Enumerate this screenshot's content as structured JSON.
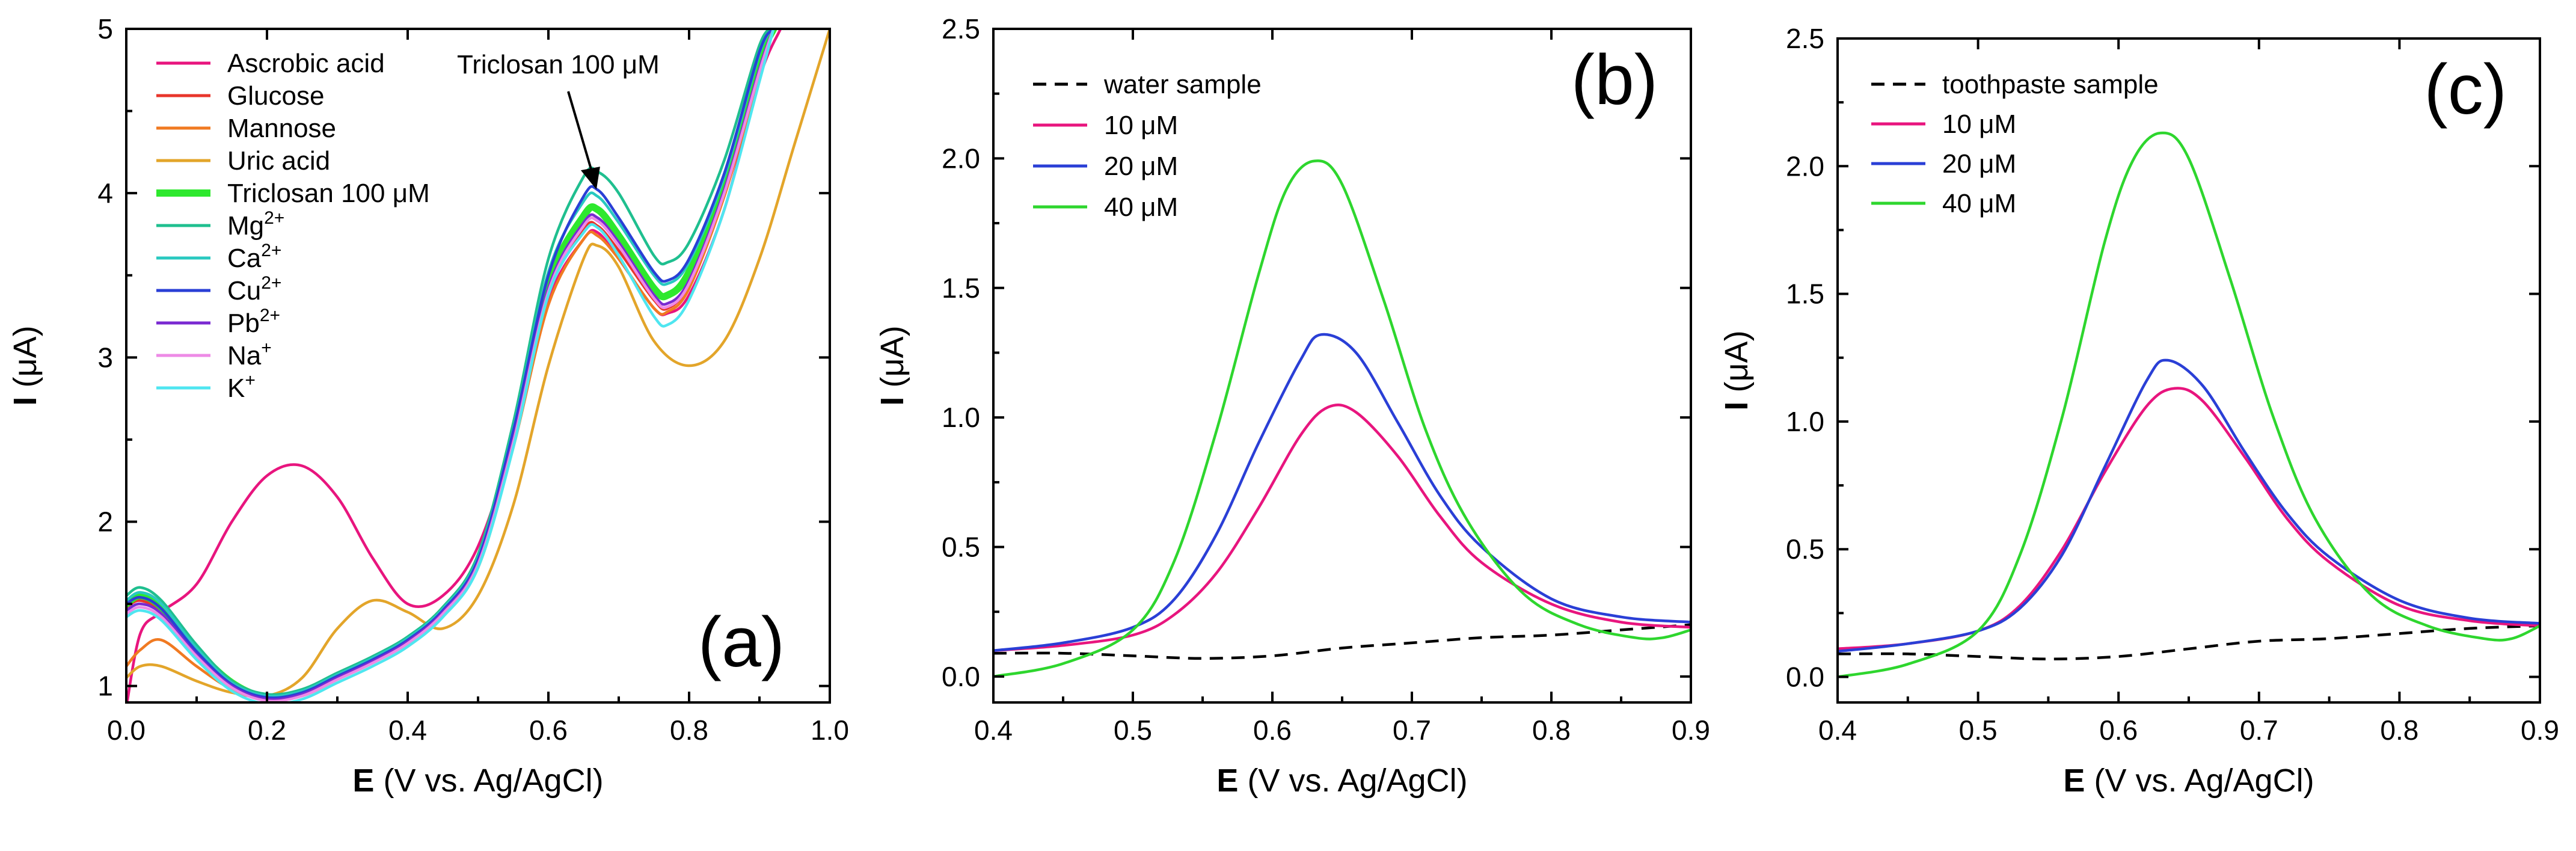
{
  "chart_data": [
    {
      "panel": "a",
      "type": "line",
      "panel_label": "(a)",
      "xlabel_bold": "E",
      "xlabel_rest": " (V vs. Ag/AgCl)",
      "ylabel_bold": "I",
      "ylabel_rest": " (μA)",
      "xlim": [
        0.0,
        1.0
      ],
      "ylim": [
        0.9,
        5.0
      ],
      "xticks": [
        0.0,
        0.2,
        0.4,
        0.6,
        0.8,
        1.0
      ],
      "xtick_labels": [
        "0.0",
        "0.2",
        "0.4",
        "0.6",
        "0.8",
        "1.0"
      ],
      "yticks": [
        1,
        2,
        3,
        4,
        5
      ],
      "ytick_labels": [
        "1",
        "2",
        "3",
        "4",
        "5"
      ],
      "legend_position": "top-left",
      "annotation": "Triclosan 100 μM",
      "annotation_target": [
        0.67,
        4.0
      ],
      "series": [
        {
          "name": "Ascrobic acid",
          "label_main": "Ascrobic acid",
          "label_sup": "",
          "color": "#e8157e",
          "thick": false,
          "x": [
            0.0,
            0.02,
            0.05,
            0.1,
            0.15,
            0.2,
            0.25,
            0.3,
            0.35,
            0.4,
            0.45,
            0.5,
            0.55,
            0.6,
            0.65,
            0.67,
            0.7,
            0.75,
            0.77,
            0.8,
            0.85,
            0.9,
            0.93
          ],
          "y": [
            0.87,
            1.32,
            1.45,
            1.62,
            2.0,
            2.28,
            2.34,
            2.15,
            1.78,
            1.5,
            1.55,
            1.85,
            2.5,
            3.35,
            3.72,
            3.76,
            3.6,
            3.3,
            3.27,
            3.38,
            3.9,
            4.7,
            5.0
          ]
        },
        {
          "name": "Glucose",
          "label_main": "Glucose",
          "label_sup": "",
          "color": "#e8352b",
          "thick": false,
          "x": [
            0.0,
            0.02,
            0.05,
            0.1,
            0.15,
            0.2,
            0.25,
            0.3,
            0.35,
            0.4,
            0.45,
            0.5,
            0.55,
            0.6,
            0.65,
            0.67,
            0.7,
            0.75,
            0.77,
            0.8,
            0.85,
            0.9,
            0.92
          ],
          "y": [
            1.48,
            1.52,
            1.45,
            1.2,
            1.0,
            0.92,
            0.95,
            1.05,
            1.15,
            1.27,
            1.45,
            1.75,
            2.5,
            3.4,
            3.78,
            3.8,
            3.65,
            3.35,
            3.3,
            3.45,
            4.0,
            4.75,
            5.0
          ]
        },
        {
          "name": "Mannose",
          "label_main": "Mannose",
          "label_sup": "",
          "color": "#f07a22",
          "thick": false,
          "x": [
            0.0,
            0.02,
            0.05,
            0.1,
            0.15,
            0.2,
            0.25,
            0.3,
            0.35,
            0.4,
            0.45,
            0.5,
            0.55,
            0.6,
            0.65,
            0.67,
            0.7,
            0.75,
            0.77,
            0.8,
            0.85,
            0.9,
            0.92
          ],
          "y": [
            1.12,
            1.22,
            1.28,
            1.12,
            0.98,
            0.92,
            0.94,
            1.04,
            1.14,
            1.26,
            1.44,
            1.72,
            2.45,
            3.32,
            3.72,
            3.74,
            3.6,
            3.3,
            3.28,
            3.42,
            3.98,
            4.72,
            5.0
          ]
        },
        {
          "name": "Uric acid",
          "label_main": "Uric acid",
          "label_sup": "",
          "color": "#e3a52a",
          "thick": false,
          "x": [
            0.0,
            0.02,
            0.05,
            0.1,
            0.15,
            0.2,
            0.25,
            0.3,
            0.35,
            0.4,
            0.45,
            0.5,
            0.55,
            0.6,
            0.65,
            0.67,
            0.7,
            0.75,
            0.8,
            0.85,
            0.9,
            0.95,
            1.0
          ],
          "y": [
            1.05,
            1.12,
            1.12,
            1.03,
            0.96,
            0.94,
            1.05,
            1.35,
            1.52,
            1.45,
            1.35,
            1.55,
            2.1,
            2.95,
            3.6,
            3.68,
            3.55,
            3.1,
            2.95,
            3.1,
            3.6,
            4.3,
            5.0
          ]
        },
        {
          "name": "Triclosan 100 μM",
          "label_main": "Triclosan 100 μM",
          "label_sup": "",
          "color": "#2ee82e",
          "thick": true,
          "x": [
            0.0,
            0.02,
            0.05,
            0.1,
            0.15,
            0.2,
            0.25,
            0.3,
            0.35,
            0.4,
            0.45,
            0.5,
            0.55,
            0.6,
            0.65,
            0.67,
            0.7,
            0.75,
            0.77,
            0.8,
            0.85,
            0.9,
            0.92
          ],
          "y": [
            1.5,
            1.55,
            1.48,
            1.22,
            1.02,
            0.93,
            0.96,
            1.06,
            1.16,
            1.28,
            1.46,
            1.76,
            2.52,
            3.45,
            3.86,
            3.9,
            3.74,
            3.42,
            3.38,
            3.52,
            4.05,
            4.8,
            5.0
          ]
        },
        {
          "name": "Mg2+",
          "label_main": "Mg",
          "label_sup": "2+",
          "color": "#1fbf8f",
          "thick": false,
          "x": [
            0.0,
            0.02,
            0.05,
            0.1,
            0.15,
            0.2,
            0.25,
            0.3,
            0.35,
            0.4,
            0.45,
            0.5,
            0.55,
            0.6,
            0.65,
            0.67,
            0.7,
            0.75,
            0.77,
            0.8,
            0.85,
            0.9,
            0.92
          ],
          "y": [
            1.55,
            1.6,
            1.52,
            1.25,
            1.03,
            0.95,
            0.98,
            1.08,
            1.18,
            1.3,
            1.48,
            1.8,
            2.6,
            3.6,
            4.1,
            4.13,
            4.0,
            3.62,
            3.58,
            3.7,
            4.2,
            4.9,
            5.0
          ]
        },
        {
          "name": "Ca2+",
          "label_main": "Ca",
          "label_sup": "2+",
          "color": "#29c9c0",
          "thick": false,
          "x": [
            0.0,
            0.02,
            0.05,
            0.1,
            0.15,
            0.2,
            0.25,
            0.3,
            0.35,
            0.4,
            0.45,
            0.5,
            0.55,
            0.6,
            0.65,
            0.67,
            0.7,
            0.75,
            0.77,
            0.8,
            0.85,
            0.9,
            0.92
          ],
          "y": [
            1.52,
            1.57,
            1.5,
            1.23,
            1.02,
            0.94,
            0.97,
            1.07,
            1.17,
            1.29,
            1.47,
            1.78,
            2.56,
            3.52,
            3.95,
            3.98,
            3.82,
            3.5,
            3.45,
            3.58,
            4.1,
            4.85,
            5.0
          ]
        },
        {
          "name": "Cu2+",
          "label_main": "Cu",
          "label_sup": "2+",
          "color": "#2a3fd6",
          "thick": false,
          "x": [
            0.0,
            0.02,
            0.05,
            0.1,
            0.15,
            0.2,
            0.25,
            0.3,
            0.35,
            0.4,
            0.45,
            0.5,
            0.55,
            0.6,
            0.65,
            0.67,
            0.7,
            0.75,
            0.77,
            0.8,
            0.85,
            0.9,
            0.92
          ],
          "y": [
            1.5,
            1.54,
            1.47,
            1.21,
            1.01,
            0.93,
            0.96,
            1.06,
            1.16,
            1.28,
            1.46,
            1.77,
            2.55,
            3.5,
            3.98,
            4.02,
            3.85,
            3.52,
            3.47,
            3.6,
            4.12,
            4.86,
            5.0
          ]
        },
        {
          "name": "Pb2+",
          "label_main": "Pb",
          "label_sup": "2+",
          "color": "#7a2ad1",
          "thick": false,
          "x": [
            0.0,
            0.02,
            0.05,
            0.1,
            0.15,
            0.2,
            0.25,
            0.3,
            0.35,
            0.4,
            0.45,
            0.5,
            0.55,
            0.6,
            0.65,
            0.67,
            0.7,
            0.75,
            0.77,
            0.8,
            0.85,
            0.9,
            0.92
          ],
          "y": [
            1.46,
            1.5,
            1.44,
            1.19,
            1.0,
            0.92,
            0.95,
            1.05,
            1.15,
            1.27,
            1.45,
            1.75,
            2.5,
            3.42,
            3.82,
            3.85,
            3.7,
            3.38,
            3.33,
            3.47,
            4.02,
            4.76,
            5.0
          ]
        },
        {
          "name": "Na+",
          "label_main": "Na",
          "label_sup": "+",
          "color": "#ee8ae6",
          "thick": false,
          "x": [
            0.0,
            0.02,
            0.05,
            0.1,
            0.15,
            0.2,
            0.25,
            0.3,
            0.35,
            0.4,
            0.45,
            0.5,
            0.55,
            0.6,
            0.65,
            0.67,
            0.7,
            0.75,
            0.77,
            0.8,
            0.85,
            0.9,
            0.92
          ],
          "y": [
            1.44,
            1.48,
            1.42,
            1.18,
            0.99,
            0.91,
            0.94,
            1.04,
            1.14,
            1.26,
            1.44,
            1.74,
            2.48,
            3.4,
            3.8,
            3.83,
            3.68,
            3.36,
            3.31,
            3.45,
            4.0,
            4.74,
            5.0
          ]
        },
        {
          "name": "K+",
          "label_main": "K",
          "label_sup": "+",
          "color": "#4fe6f0",
          "thick": false,
          "x": [
            0.0,
            0.02,
            0.05,
            0.1,
            0.15,
            0.2,
            0.25,
            0.3,
            0.35,
            0.4,
            0.45,
            0.5,
            0.55,
            0.6,
            0.65,
            0.67,
            0.7,
            0.75,
            0.77,
            0.8,
            0.85,
            0.9,
            0.92
          ],
          "y": [
            1.42,
            1.46,
            1.4,
            1.16,
            0.97,
            0.89,
            0.92,
            1.02,
            1.12,
            1.24,
            1.42,
            1.72,
            2.45,
            3.38,
            3.76,
            3.79,
            3.62,
            3.25,
            3.2,
            3.35,
            3.9,
            4.68,
            5.0
          ]
        }
      ]
    },
    {
      "panel": "b",
      "type": "line",
      "panel_label": "(b)",
      "xlabel_bold": "E",
      "xlabel_rest": " (V vs. Ag/AgCl)",
      "ylabel_bold": "I",
      "ylabel_rest": " (μA)",
      "xlim": [
        0.4,
        0.9
      ],
      "ylim": [
        -0.1,
        2.5
      ],
      "xticks": [
        0.4,
        0.5,
        0.6,
        0.7,
        0.8,
        0.9
      ],
      "xtick_labels": [
        "0.4",
        "0.5",
        "0.6",
        "0.7",
        "0.8",
        "0.9"
      ],
      "yticks": [
        0.0,
        0.5,
        1.0,
        1.5,
        2.0,
        2.5
      ],
      "ytick_labels": [
        "0.0",
        "0.5",
        "1.0",
        "1.5",
        "2.0",
        "2.5"
      ],
      "legend_position": "top-left",
      "series": [
        {
          "name": "water sample",
          "label_main": "water sample",
          "label_sup": "",
          "color": "#000000",
          "dashed": true,
          "x": [
            0.4,
            0.45,
            0.5,
            0.55,
            0.6,
            0.65,
            0.7,
            0.75,
            0.8,
            0.85,
            0.9
          ],
          "y": [
            0.09,
            0.09,
            0.08,
            0.07,
            0.08,
            0.11,
            0.13,
            0.15,
            0.16,
            0.18,
            0.2
          ]
        },
        {
          "name": "10 μM",
          "label_main": "10 μM",
          "label_sup": "",
          "color": "#e8157e",
          "dashed": false,
          "x": [
            0.4,
            0.45,
            0.5,
            0.53,
            0.56,
            0.59,
            0.62,
            0.64,
            0.66,
            0.69,
            0.72,
            0.75,
            0.8,
            0.85,
            0.9
          ],
          "y": [
            0.1,
            0.12,
            0.16,
            0.24,
            0.4,
            0.65,
            0.93,
            1.04,
            1.02,
            0.85,
            0.62,
            0.44,
            0.28,
            0.21,
            0.19
          ]
        },
        {
          "name": "20 μM",
          "label_main": "20 μM",
          "label_sup": "",
          "color": "#2a3fd6",
          "dashed": false,
          "x": [
            0.4,
            0.45,
            0.5,
            0.53,
            0.56,
            0.59,
            0.62,
            0.635,
            0.66,
            0.69,
            0.72,
            0.75,
            0.8,
            0.85,
            0.9
          ],
          "y": [
            0.1,
            0.13,
            0.19,
            0.3,
            0.55,
            0.9,
            1.22,
            1.32,
            1.25,
            0.98,
            0.7,
            0.5,
            0.3,
            0.23,
            0.21
          ]
        },
        {
          "name": "40 μM",
          "label_main": "40 μM",
          "label_sup": "",
          "color": "#2ed62e",
          "dashed": false,
          "x": [
            0.4,
            0.45,
            0.5,
            0.53,
            0.56,
            0.59,
            0.61,
            0.63,
            0.65,
            0.68,
            0.71,
            0.74,
            0.78,
            0.82,
            0.86,
            0.88,
            0.9
          ],
          "y": [
            0.0,
            0.05,
            0.18,
            0.45,
            0.95,
            1.55,
            1.88,
            1.99,
            1.9,
            1.45,
            0.95,
            0.6,
            0.32,
            0.2,
            0.15,
            0.15,
            0.18
          ]
        }
      ]
    },
    {
      "panel": "c",
      "type": "line",
      "panel_label": "(c)",
      "xlabel_bold": "E",
      "xlabel_rest": " (V vs. Ag/AgCl)",
      "ylabel_bold": "I",
      "ylabel_rest": " (μA)",
      "xlim": [
        0.4,
        0.9
      ],
      "ylim": [
        -0.1,
        2.5
      ],
      "xticks": [
        0.4,
        0.5,
        0.6,
        0.7,
        0.8,
        0.9
      ],
      "xtick_labels": [
        "0.4",
        "0.5",
        "0.6",
        "0.7",
        "0.8",
        "0.9"
      ],
      "yticks": [
        0.0,
        0.5,
        1.0,
        1.5,
        2.0,
        2.5
      ],
      "ytick_labels": [
        "0.0",
        "0.5",
        "1.0",
        "1.5",
        "2.0",
        "2.5"
      ],
      "legend_position": "top-left",
      "series": [
        {
          "name": "toothpaste sample",
          "label_main": "toothpaste sample",
          "label_sup": "",
          "color": "#000000",
          "dashed": true,
          "x": [
            0.4,
            0.45,
            0.5,
            0.55,
            0.6,
            0.65,
            0.7,
            0.75,
            0.8,
            0.85,
            0.9
          ],
          "y": [
            0.09,
            0.09,
            0.08,
            0.07,
            0.08,
            0.11,
            0.14,
            0.15,
            0.17,
            0.19,
            0.2
          ]
        },
        {
          "name": "10 μM",
          "label_main": "10 μM",
          "label_sup": "",
          "color": "#e8157e",
          "dashed": false,
          "x": [
            0.4,
            0.45,
            0.5,
            0.53,
            0.56,
            0.59,
            0.62,
            0.64,
            0.66,
            0.69,
            0.72,
            0.75,
            0.8,
            0.85,
            0.9
          ],
          "y": [
            0.11,
            0.13,
            0.18,
            0.28,
            0.5,
            0.8,
            1.06,
            1.13,
            1.08,
            0.86,
            0.62,
            0.45,
            0.28,
            0.22,
            0.2
          ]
        },
        {
          "name": "20 μM",
          "label_main": "20 μM",
          "label_sup": "",
          "color": "#2a3fd6",
          "dashed": false,
          "x": [
            0.4,
            0.45,
            0.5,
            0.53,
            0.56,
            0.59,
            0.62,
            0.635,
            0.66,
            0.69,
            0.72,
            0.75,
            0.8,
            0.85,
            0.9
          ],
          "y": [
            0.1,
            0.13,
            0.18,
            0.27,
            0.48,
            0.82,
            1.16,
            1.24,
            1.14,
            0.88,
            0.64,
            0.47,
            0.3,
            0.23,
            0.21
          ]
        },
        {
          "name": "40 μM",
          "label_main": "40 μM",
          "label_sup": "",
          "color": "#2ed62e",
          "dashed": false,
          "x": [
            0.4,
            0.45,
            0.5,
            0.53,
            0.56,
            0.59,
            0.61,
            0.63,
            0.65,
            0.68,
            0.71,
            0.74,
            0.78,
            0.82,
            0.86,
            0.88,
            0.9
          ],
          "y": [
            0.0,
            0.05,
            0.18,
            0.48,
            1.02,
            1.7,
            2.02,
            2.13,
            2.03,
            1.55,
            1.02,
            0.62,
            0.32,
            0.2,
            0.15,
            0.15,
            0.2
          ]
        }
      ]
    }
  ]
}
